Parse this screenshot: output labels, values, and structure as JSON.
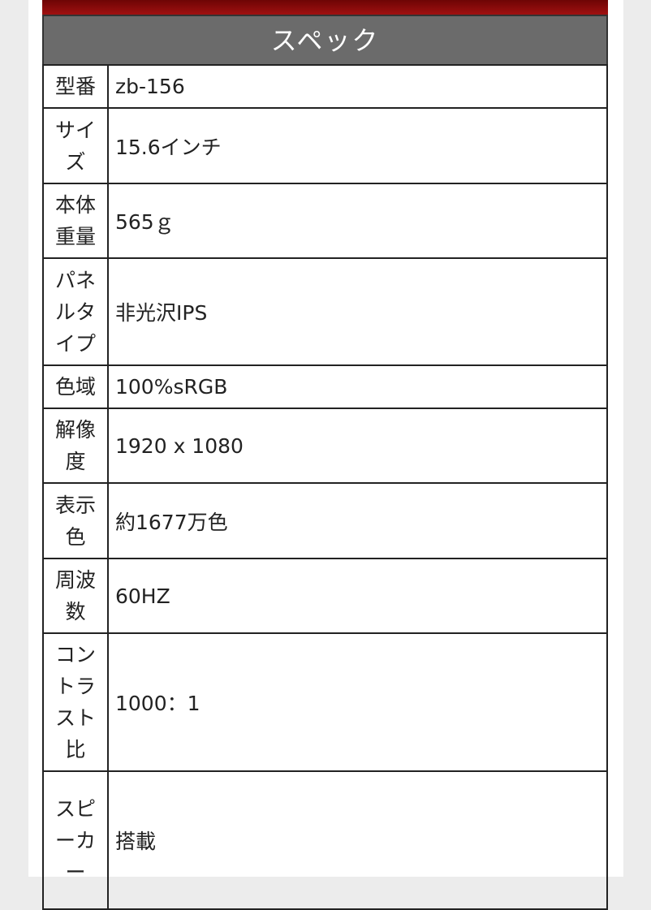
{
  "header": {
    "title": "スペック"
  },
  "table": {
    "rows": [
      [
        "型番",
        "zb-156"
      ],
      [
        "サイズ",
        "15.6インチ"
      ],
      [
        "本体重量",
        "565ｇ"
      ],
      [
        "パネルタイプ",
        "非光沢IPS"
      ],
      [
        "色域",
        "100%sRGB"
      ],
      [
        "解像度",
        "1920 x 1080"
      ],
      [
        "表示色",
        "約1677万色"
      ],
      [
        "周波数",
        "60HZ"
      ],
      [
        "コントラスト比",
        "1000：1"
      ],
      [
        "スピーカー",
        "搭載"
      ]
    ]
  }
}
